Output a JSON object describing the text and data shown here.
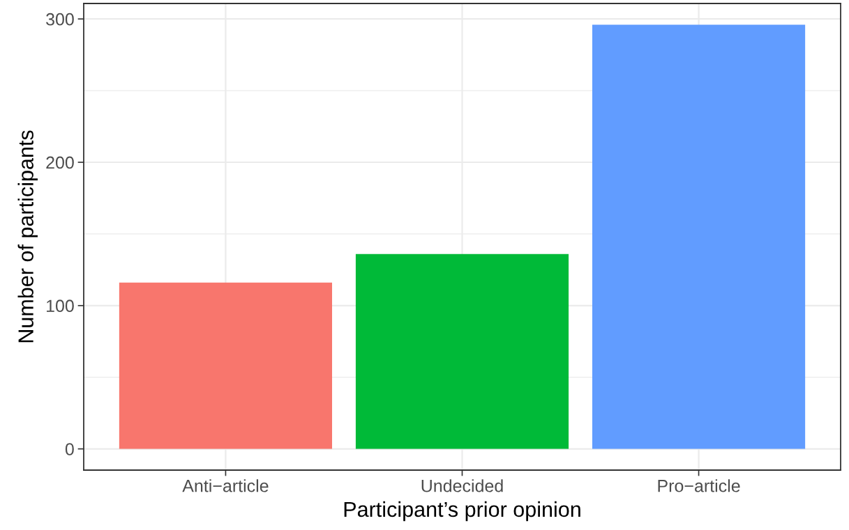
{
  "chart_data": {
    "type": "bar",
    "xlabel": "Participant’s prior opinion",
    "ylabel": "Number of participants",
    "categories": [
      "Anti−article",
      "Undecided",
      "Pro−article"
    ],
    "values": [
      116,
      136,
      296
    ],
    "colors": [
      "#f8766d",
      "#00ba38",
      "#619cff"
    ],
    "ylim": [
      -14.8,
      310.8
    ],
    "yticks": [
      0,
      100,
      200,
      300
    ],
    "grid": true
  }
}
